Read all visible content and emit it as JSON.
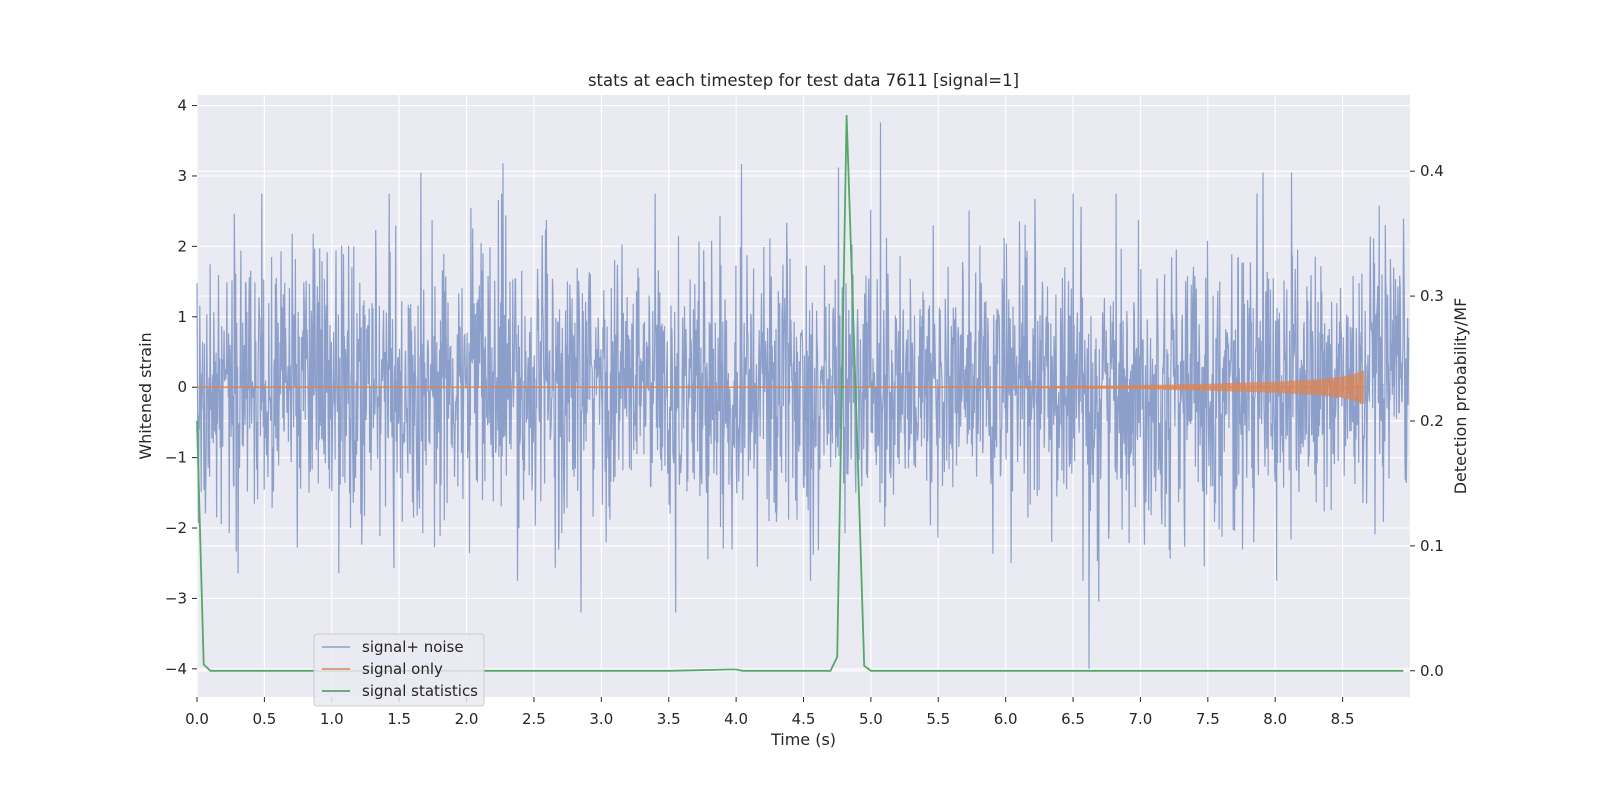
{
  "chart_data": {
    "type": "line",
    "title": "stats at each timestep for test data 7611 [signal=1]",
    "xlabel": "Time (s)",
    "ylabel_left": "Whitened strain",
    "ylabel_right": "Detection probability/MF",
    "xlim": [
      0.0,
      9.0
    ],
    "ylim_left": [
      -4.4,
      4.15
    ],
    "ylim_right": [
      -0.021,
      0.461
    ],
    "x_ticks": [
      "0.0",
      "0.5",
      "1.0",
      "1.5",
      "2.0",
      "2.5",
      "3.0",
      "3.5",
      "4.0",
      "4.5",
      "5.0",
      "5.5",
      "6.0",
      "6.5",
      "7.0",
      "7.5",
      "8.0",
      "8.5"
    ],
    "y_ticks_left": [
      "4",
      "3",
      "2",
      "1",
      "0",
      "−1",
      "−2",
      "−3",
      "−4"
    ],
    "y_ticks_right": [
      "0.4",
      "0.3",
      "0.2",
      "0.1",
      "0.0"
    ],
    "grid": true,
    "legend": {
      "location": "lower-left",
      "entries": [
        "signal+ noise",
        "signal only",
        "signal statistics"
      ]
    },
    "series": [
      {
        "name": "signal+ noise",
        "axis": "left",
        "color": "#8c9fca",
        "description_values": {
          "typical_range": [
            -2.0,
            2.0
          ],
          "notable_peaks": [
            [
              1.66,
              3.05
            ],
            [
              2.27,
              3.18
            ],
            [
              4.04,
              3.17
            ],
            [
              4.76,
              3.12
            ],
            [
              5.07,
              3.76
            ],
            [
              6.62,
              -4.0
            ],
            [
              6.69,
              -3.05
            ],
            [
              2.85,
              -3.2
            ],
            [
              3.55,
              -3.2
            ],
            [
              8.12,
              -3.2
            ],
            [
              7.91,
              3.05
            ],
            [
              8.12,
              3.05
            ]
          ]
        }
      },
      {
        "name": "signal only",
        "axis": "left",
        "color": "#dd8452",
        "envelope": {
          "x": [
            0.0,
            6.0,
            7.0,
            7.5,
            8.0,
            8.3,
            8.5,
            8.6,
            8.66
          ],
          "amp": [
            0.0,
            0.01,
            0.03,
            0.05,
            0.08,
            0.11,
            0.15,
            0.2,
            0.24
          ]
        }
      },
      {
        "name": "signal statistics",
        "axis": "right",
        "color": "#55a868",
        "x": [
          0.0,
          0.05,
          0.1,
          0.15,
          0.5,
          1.0,
          1.5,
          2.0,
          2.5,
          3.0,
          3.5,
          3.95,
          4.0,
          4.05,
          4.5,
          4.7,
          4.75,
          4.82,
          4.9,
          4.95,
          5.0,
          5.5,
          6.0,
          6.5,
          7.0,
          7.5,
          8.0,
          8.5,
          8.95
        ],
        "values": [
          0.2,
          0.005,
          0.0,
          0.0,
          0.0,
          0.0,
          0.0,
          0.0,
          0.0,
          0.0,
          0.0,
          0.001,
          0.001,
          0.0,
          0.0,
          0.0,
          0.011,
          0.445,
          0.18,
          0.004,
          0.0,
          0.0,
          0.0,
          0.0,
          0.0,
          0.0,
          0.0,
          0.0,
          0.0
        ]
      }
    ]
  }
}
